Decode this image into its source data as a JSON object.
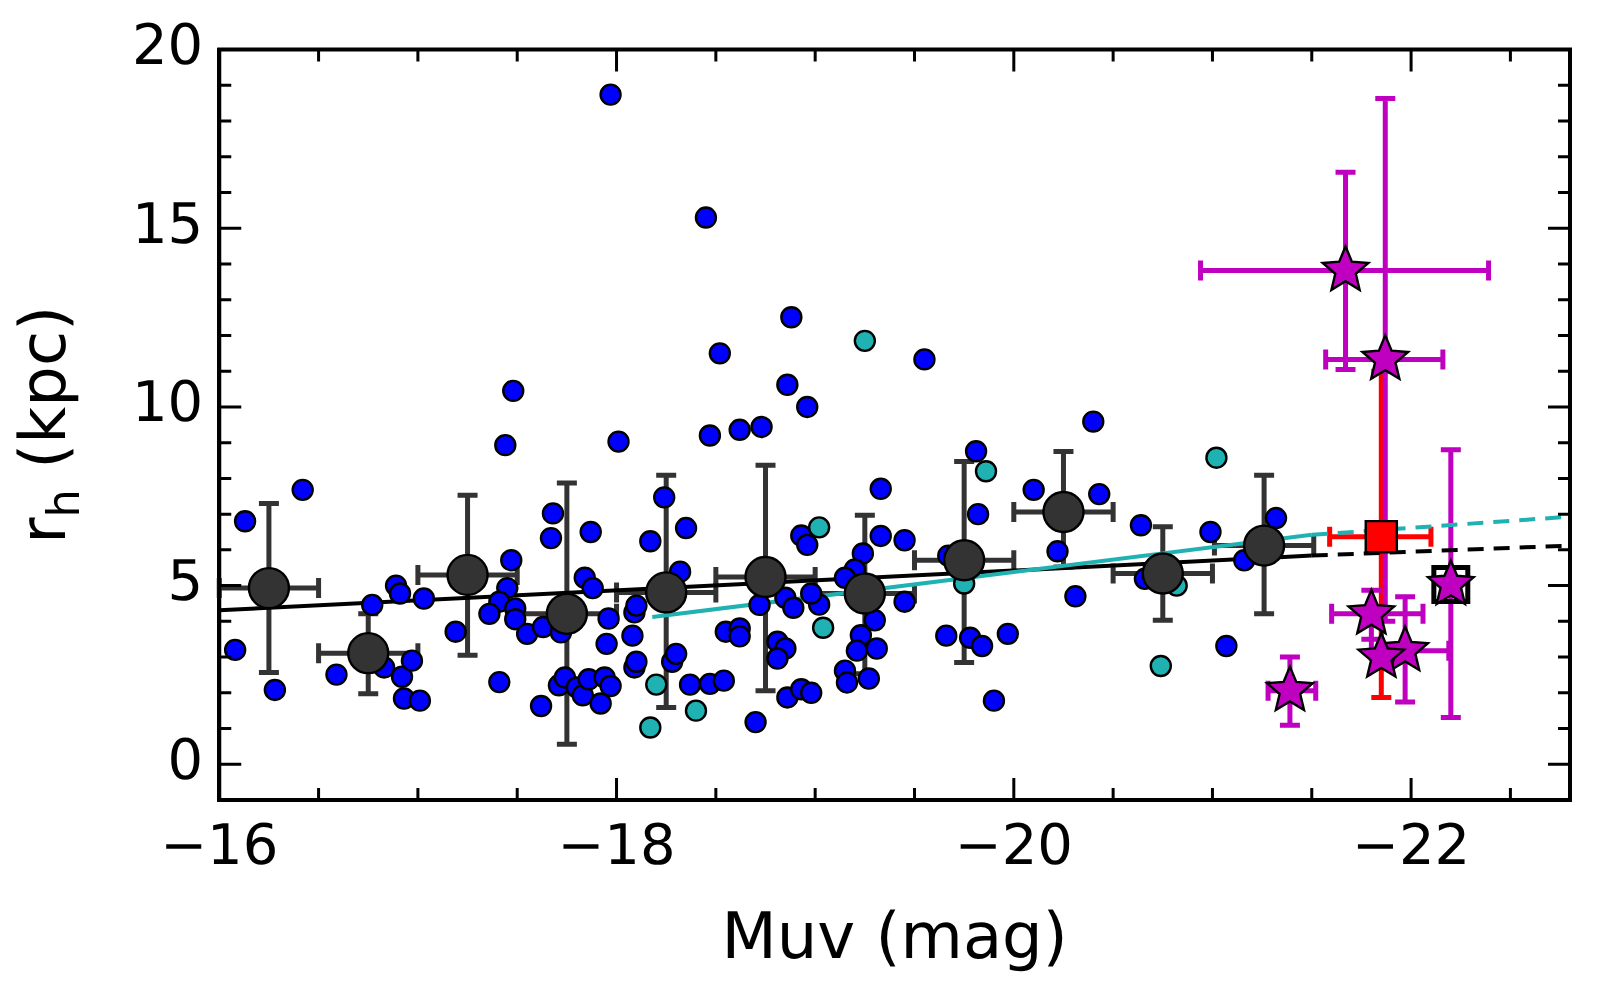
{
  "chart_data": {
    "type": "scatter",
    "xlabel": "Muv (mag)",
    "ylabel": "r$_{h}$ (kpc)",
    "xlim": [
      -16,
      -22.8
    ],
    "ylim": [
      -1,
      20
    ],
    "xticks": [
      {
        "value": -16,
        "label": "−16"
      },
      {
        "value": -16.5,
        "label": null
      },
      {
        "value": -17,
        "label": null
      },
      {
        "value": -17.5,
        "label": null
      },
      {
        "value": -18,
        "label": "−18"
      },
      {
        "value": -18.5,
        "label": null
      },
      {
        "value": -19,
        "label": null
      },
      {
        "value": -19.5,
        "label": null
      },
      {
        "value": -20,
        "label": "−20"
      },
      {
        "value": -20.5,
        "label": null
      },
      {
        "value": -21,
        "label": null
      },
      {
        "value": -21.5,
        "label": null
      },
      {
        "value": -22,
        "label": "−22"
      },
      {
        "value": -22.5,
        "label": null
      }
    ],
    "yticks": [
      0,
      {
        "value": 1,
        "label": null
      },
      {
        "value": 2,
        "label": null
      },
      {
        "value": 3,
        "label": null
      },
      {
        "value": 4,
        "label": null
      },
      5,
      {
        "value": 6,
        "label": null
      },
      {
        "value": 7,
        "label": null
      },
      {
        "value": 8,
        "label": null
      },
      {
        "value": 9,
        "label": null
      },
      10,
      {
        "value": 11,
        "label": null
      },
      {
        "value": 12,
        "label": null
      },
      {
        "value": 13,
        "label": null
      },
      {
        "value": 14,
        "label": null
      },
      15,
      {
        "value": 16,
        "label": null
      },
      {
        "value": 17,
        "label": null
      },
      {
        "value": 18,
        "label": null
      },
      {
        "value": 19,
        "label": null
      },
      20
    ],
    "grid": false,
    "legend": false,
    "series": [
      {
        "type": "line",
        "color": "#000000",
        "line_style": "solid",
        "x": [
          -16,
          -21.5
        ],
        "values": [
          4.31,
          5.84
        ]
      },
      {
        "type": "line",
        "color": "#000000",
        "line_style": "dashed",
        "x": [
          -21.5,
          -22.8
        ],
        "values": [
          5.84,
          6.12
        ]
      },
      {
        "type": "line",
        "color": "#20b2b2",
        "line_style": "solid",
        "x": [
          -18.18,
          -21.5
        ],
        "values": [
          4.12,
          6.42
        ]
      },
      {
        "type": "line",
        "color": "#20b2b2",
        "line_style": "dashed",
        "x": [
          -21.5,
          -22.8
        ],
        "values": [
          6.42,
          6.93
        ]
      },
      {
        "marker": "circle",
        "color": "#0000ff",
        "x": [
          -17.97,
          -18.45,
          -18.88,
          -18.52,
          -18.86,
          -18.96,
          -17.48,
          -19.55,
          -17.44,
          -18.01,
          -16.42,
          -16.13,
          -17.68,
          -17.67,
          -17.87,
          -17.47,
          -18.17,
          -18.24,
          -18.35,
          -16.89,
          -16.91,
          -17.03,
          -16.77,
          -17.45,
          -17.41,
          -17.49,
          -17.36,
          -17.84,
          -17.88,
          -17.49,
          -17.19,
          -17.55,
          -17.63,
          -17.72,
          -17.96,
          -18.09,
          -18.1,
          -18.08,
          -17.95,
          -16.08,
          -16.28,
          -16.59,
          -16.83,
          -16.92,
          -16.97,
          -16.93,
          -17.01,
          -17.41,
          -17.71,
          -17.74,
          -17.8,
          -17.83,
          -17.86,
          -17.94,
          -17.97,
          -17.92,
          -17.62,
          -18.09,
          -18.1,
          -18.28,
          -18.37,
          -18.47,
          -18.62,
          -18.73,
          -20.4,
          -18.32,
          -19.33,
          -19.81,
          -19.82,
          -20.1,
          -20.43,
          -18.93,
          -18.96,
          -19.24,
          -19.2,
          -19.15,
          -19.45,
          -19.33,
          -19.67,
          -20.22,
          -20.31,
          -18.72,
          -18.85,
          -18.89,
          -19.02,
          -18.98,
          -19.45,
          -19.3,
          -18.55,
          -18.62,
          -18.62,
          -18.81,
          -18.85,
          -18.81,
          -18.3,
          -18.47,
          -18.54,
          -18.7,
          -18.86,
          -18.93,
          -18.98,
          -19.23,
          -19.31,
          -19.21,
          -19.15,
          -19.16,
          -19.27,
          -19.66,
          -19.78,
          -19.84,
          -19.97,
          -19.9,
          -20.64,
          -20.99,
          -21.32,
          -21.16,
          -20.66,
          -21.07
        ],
        "values": [
          18.74,
          15.3,
          12.51,
          11.5,
          10.62,
          10.0,
          10.45,
          11.33,
          8.93,
          9.03,
          7.68,
          6.8,
          7.02,
          6.33,
          6.5,
          5.71,
          6.24,
          7.47,
          6.61,
          5.0,
          4.78,
          4.64,
          4.46,
          4.93,
          4.55,
          4.36,
          4.21,
          5.22,
          4.93,
          4.06,
          3.71,
          3.65,
          3.84,
          3.69,
          4.08,
          4.25,
          4.44,
          3.6,
          3.37,
          3.2,
          2.08,
          2.51,
          2.71,
          2.45,
          2.9,
          1.84,
          1.78,
          2.3,
          2.21,
          2.43,
          2.15,
          1.93,
          2.38,
          2.43,
          2.19,
          1.7,
          1.63,
          2.71,
          2.87,
          2.87,
          2.23,
          9.2,
          9.36,
          9.44,
          9.59,
          5.39,
          7.71,
          8.76,
          7.0,
          7.68,
          7.56,
          6.4,
          6.14,
          5.9,
          5.45,
          5.22,
          6.27,
          6.39,
          5.84,
          5.96,
          4.7,
          4.46,
          4.66,
          4.38,
          4.47,
          4.78,
          4.55,
          4.03,
          3.71,
          3.8,
          3.58,
          3.43,
          3.24,
          2.96,
          3.09,
          2.25,
          2.34,
          1.18,
          1.87,
          2.1,
          2.0,
          3.61,
          3.24,
          3.18,
          2.62,
          2.29,
          2.4,
          3.6,
          3.54,
          3.31,
          3.65,
          1.78,
          6.69,
          6.5,
          6.89,
          5.71,
          5.19,
          3.31
        ]
      },
      {
        "marker": "circle",
        "color": "#20b2b2",
        "x": [
          -18.2,
          -18.17,
          -18.4,
          -19.25,
          -19.86,
          -19.02,
          -19.04,
          -19.75,
          -21.02,
          -20.82,
          -20.74
        ],
        "values": [
          2.23,
          1.03,
          1.5,
          11.85,
          8.2,
          6.63,
          3.82,
          5.06,
          8.58,
          5.0,
          2.75
        ]
      },
      {
        "marker": "circle",
        "color": "#333333",
        "x": [
          -16.25,
          -16.75,
          -17.25,
          -17.75,
          -18.25,
          -18.75,
          -19.25,
          -19.75,
          -20.25,
          -20.75,
          -21.26
        ],
        "values": [
          4.93,
          3.11,
          5.3,
          4.21,
          4.81,
          5.24,
          4.78,
          5.71,
          7.06,
          5.34,
          6.12
        ],
        "errors": [
          [
            2.57,
            7.3
          ],
          [
            1.97,
            4.21
          ],
          [
            3.05,
            7.53
          ],
          [
            0.56,
            7.87
          ],
          [
            1.59,
            8.09
          ],
          [
            2.06,
            8.37
          ],
          [
            2.53,
            6.97
          ],
          [
            2.85,
            8.47
          ],
          [
            5.52,
            8.75
          ],
          [
            4.03,
            6.65
          ],
          [
            4.21,
            8.09
          ]
        ],
        "xerrors": [
          0.25,
          0.25,
          0.25,
          0.25,
          0.25,
          0.25,
          0.25,
          0.25,
          0.25,
          0.25,
          0.25
        ]
      },
      {
        "type": "scatter",
        "marker": "square",
        "color": "#ff0000",
        "x": [
          -21.85
        ],
        "values": [
          6.37
        ],
        "errors": [
          [
            1.87,
            11.0
          ]
        ],
        "xerrors": [
          [
            -21.59,
            -22.1
          ]
        ]
      },
      {
        "type": "scatter",
        "marker": "square",
        "color": "#000000",
        "x": [
          -22.2
        ],
        "values": [
          5.03
        ]
      },
      {
        "type": "scatter",
        "marker": "star",
        "color": "#c000c0",
        "x": [
          -21.67,
          -21.87,
          -22.2,
          -21.97,
          -21.85,
          -21.39,
          -21.8
        ],
        "values": [
          13.82,
          11.33,
          5.03,
          3.18,
          3.0,
          2.06,
          4.21
        ],
        "errors": [
          [
            11.05,
            16.57
          ],
          [
            4.0,
            18.63
          ],
          [
            1.31,
            8.8
          ],
          [
            1.74,
            4.69
          ],
          null,
          [
            1.09,
            3.0
          ],
          [
            3.5,
            4.87
          ]
        ],
        "xerrors": [
          [
            -20.94,
            -22.39
          ],
          [
            -21.57,
            -22.16
          ],
          null,
          [
            -21.8,
            -22.19
          ],
          null,
          [
            -21.28,
            -21.52
          ],
          [
            -21.6,
            -22.06
          ]
        ]
      }
    ]
  }
}
